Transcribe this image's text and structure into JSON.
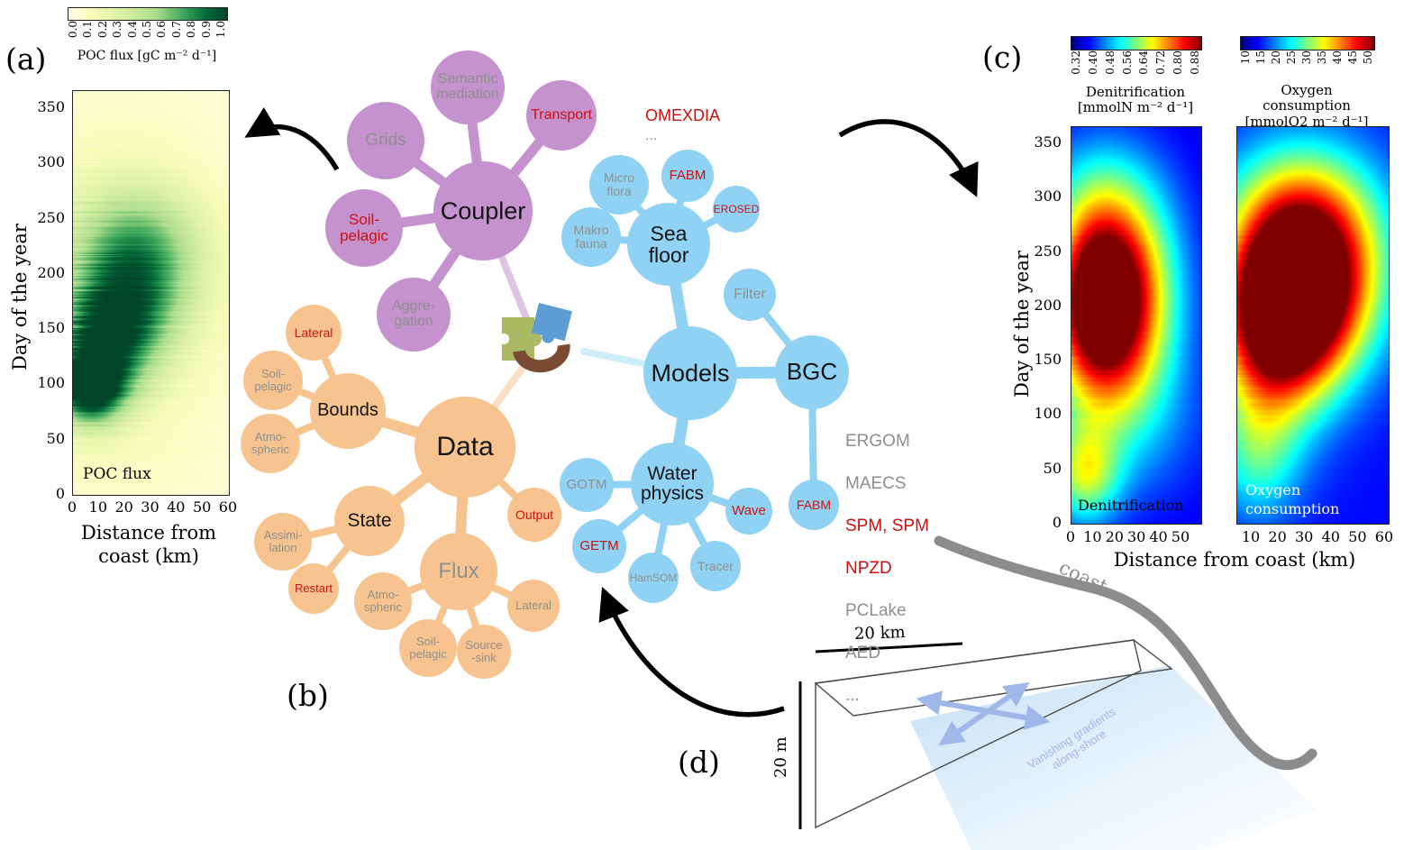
{
  "panels": {
    "a": {
      "label": "(a)",
      "colorbar_label": "POC flux [gC m⁻² d⁻¹]",
      "colorbar_ticks": [
        "0.0",
        "0.1",
        "0.2",
        "0.3",
        "0.4",
        "0.5",
        "0.6",
        "0.7",
        "0.8",
        "0.9",
        "1.0"
      ],
      "ylabel": "Day of the year",
      "y_ticks": [
        "350",
        "300",
        "250",
        "200",
        "150",
        "100",
        "50",
        "0"
      ],
      "x_ticks": [
        "0",
        "10",
        "20",
        "30",
        "40",
        "50",
        "60"
      ],
      "xlabel": "Distance from\ncoast (km)",
      "inner_label": "POC flux"
    },
    "b": {
      "label": "(b)"
    },
    "c": {
      "label": "(c)",
      "ylabel": "Day of the year",
      "y_ticks": [
        "350",
        "300",
        "250",
        "200",
        "150",
        "100",
        "50",
        "0"
      ],
      "xlabel": "Distance from coast (km)",
      "left": {
        "colorbar_label": "Denitrification\n[mmolN m⁻² d⁻¹]",
        "colorbar_ticks": [
          "0.32",
          "0.40",
          "0.48",
          "0.56",
          "0.64",
          "0.72",
          "0.80",
          "0.88"
        ],
        "x_ticks": [
          "0",
          "10",
          "20",
          "30",
          "40",
          "50"
        ],
        "inner_label": "Denitrification"
      },
      "right": {
        "colorbar_label": "Oxygen\nconsumption\n[mmolO2 m⁻² d⁻¹]",
        "colorbar_ticks": [
          "10",
          "15",
          "20",
          "25",
          "30",
          "35",
          "40",
          "45",
          "50"
        ],
        "x_ticks": [
          "10",
          "20",
          "30",
          "40",
          "50",
          "60"
        ],
        "inner_label": "Oxygen\nconsumption"
      }
    },
    "d": {
      "label": "(d)",
      "coast_label": "coast",
      "scale_horizontal": "20 km",
      "scale_vertical": "20 m",
      "gradient_note": "Vanishing gradients\nalong-shore"
    }
  },
  "mindmap": {
    "coupler": {
      "hub": "Coupler",
      "semantic_mediation": "Semantic\nmediation",
      "grids": "Grids",
      "transport": "Transport",
      "soil_pelagic": "Soil-\npelagic",
      "aggregation": "Aggre-\ngation"
    },
    "data": {
      "hub": "Data",
      "bounds": "Bounds",
      "bounds_lateral": "Lateral",
      "bounds_soil_pelagic": "Soil-\npelagic",
      "bounds_atmospheric": "Atmo-\nspheric",
      "state": "State",
      "state_assimilation": "Assimi-\nlation",
      "state_restart": "Restart",
      "flux": "Flux",
      "output": "Output",
      "flux_atmospheric": "Atmo-\nspheric",
      "flux_soil_pelagic": "Soil-\npelagic",
      "flux_source_sink": "Source\n-sink",
      "flux_lateral": "Lateral"
    },
    "models": {
      "hub": "Models",
      "sea_floor": "Sea\nfloor",
      "micro_flora": "Micro\nflora",
      "fabm_seafloor": "FABM",
      "erosed": "EROSED",
      "makro_fauna": "Makro\nfauna",
      "omexdia": "OMEXDIA",
      "omexdia_more": "...",
      "filter": "Filter",
      "bgc": "BGC",
      "bgc_list": [
        "ERGOM",
        "MAECS",
        "SPM, SPM",
        "NPZD",
        "PCLake",
        "AED",
        "..."
      ],
      "fabm_bgc": "FABM",
      "water_physics": "Water\nphysics",
      "gotm": "GOTM",
      "getm": "GETM",
      "hamsom": "HamSOM",
      "tracer": "Tracer",
      "wave": "Wave"
    }
  },
  "colors": {
    "cluster_purple": "#c591ce",
    "cluster_orange": "#f7c48f",
    "cluster_blue": "#90d2f3",
    "text_gray": "#8f8f8f",
    "text_red": "#cc1010",
    "puzzle_green": "#a9ba62",
    "puzzle_blue": "#5e9cd6",
    "puzzle_brown": "#7b4a32",
    "coast_gray": "#8c8c8c",
    "sea_blue": "#8fc3ee",
    "note_blue": "#a0b7e9"
  },
  "chart_data": [
    {
      "id": "poc_flux",
      "type": "heatmap",
      "panel": "a",
      "title": "POC flux",
      "xlabel": "Distance from coast (km)",
      "ylabel": "Day of the year",
      "x_range": [
        0,
        60
      ],
      "y_range": [
        0,
        365
      ],
      "value_range": [
        0.0,
        1.0
      ],
      "units": "gC m⁻² d⁻¹",
      "colormap": "ylgn",
      "description": "Particulate organic carbon flux: highest (0.6-1.0) within 0-30 km of the coast between days ~80-250, peaking near days 90-160 close to shore; near zero offshore and in winter.",
      "field": {
        "base": 0.05,
        "streaks": 0.3,
        "blobs": [
          {
            "x": 6,
            "d": 95,
            "sx": 9,
            "sy": 22,
            "a": 0.85
          },
          {
            "x": 10,
            "d": 130,
            "sx": 12,
            "sy": 35,
            "a": 0.5
          },
          {
            "x": 18,
            "d": 160,
            "sx": 14,
            "sy": 40,
            "a": 0.45
          },
          {
            "x": 28,
            "d": 205,
            "sx": 16,
            "sy": 45,
            "a": 0.38
          },
          {
            "x": 20,
            "d": 235,
            "sx": 20,
            "sy": 38,
            "a": 0.22
          },
          {
            "x": 15,
            "d": 165,
            "sx": 30,
            "sy": 110,
            "a": 0.15
          }
        ]
      }
    },
    {
      "id": "denitrification",
      "type": "heatmap",
      "panel": "c",
      "title": "Denitrification",
      "xlabel": "Distance from coast (km)",
      "ylabel": "Day of the year",
      "x_range": [
        0,
        59
      ],
      "y_range": [
        0,
        365
      ],
      "value_range": [
        0.32,
        0.88
      ],
      "units": "mmolN m⁻² d⁻¹",
      "colormap": "jet",
      "description": "Highest (red, ~0.8-0.9) around days 180-260 within ~0-35 km of the coast; moderate band near days 20-70 close to shore; low (blue) offshore and in winter.",
      "field": {
        "base": 0.1,
        "streaks": 0.05,
        "blobs": [
          {
            "x": 10,
            "d": 212,
            "sx": 14,
            "sy": 52,
            "a": 0.8
          },
          {
            "x": 28,
            "d": 218,
            "sx": 16,
            "sy": 55,
            "a": 0.5
          },
          {
            "x": 16,
            "d": 150,
            "sx": 18,
            "sy": 50,
            "a": 0.3
          },
          {
            "x": 6,
            "d": 45,
            "sx": 11,
            "sy": 32,
            "a": 0.4
          },
          {
            "x": 24,
            "d": 95,
            "sx": 25,
            "sy": 55,
            "a": 0.18
          },
          {
            "x": 14,
            "d": 300,
            "sx": 20,
            "sy": 45,
            "a": 0.25
          }
        ]
      }
    },
    {
      "id": "oxygen_consumption",
      "type": "heatmap",
      "panel": "c",
      "title": "Oxygen consumption",
      "xlabel": "Distance from coast (km)",
      "ylabel": "Day of the year",
      "x_range": [
        0,
        62
      ],
      "y_range": [
        0,
        365
      ],
      "value_range": [
        10,
        50
      ],
      "units": "mmolO2 m⁻² d⁻¹",
      "colormap": "jet",
      "description": "Maximum (red, ~45-50) around days 170-250 at 10-40 km from the coast; broad warm region days 100-300; low (blue) in winter and far offshore.",
      "field": {
        "base": 0.13,
        "streaks": 0.05,
        "blobs": [
          {
            "x": 22,
            "d": 200,
            "sx": 18,
            "sy": 55,
            "a": 0.85
          },
          {
            "x": 36,
            "d": 230,
            "sx": 20,
            "sy": 60,
            "a": 0.45
          },
          {
            "x": 12,
            "d": 165,
            "sx": 16,
            "sy": 70,
            "a": 0.4
          },
          {
            "x": 25,
            "d": 285,
            "sx": 22,
            "sy": 50,
            "a": 0.38
          },
          {
            "x": 8,
            "d": 60,
            "sx": 12,
            "sy": 40,
            "a": 0.22
          }
        ]
      }
    }
  ],
  "colormaps": {
    "ylgn": [
      [
        0,
        "#ffffe5"
      ],
      [
        0.15,
        "#f7fcb9"
      ],
      [
        0.35,
        "#d9f0a3"
      ],
      [
        0.55,
        "#addd8e"
      ],
      [
        0.72,
        "#41ab5d"
      ],
      [
        0.88,
        "#006837"
      ],
      [
        1,
        "#004529"
      ]
    ],
    "jet": [
      [
        0,
        "#000083"
      ],
      [
        0.125,
        "#0000ff"
      ],
      [
        0.375,
        "#00ffff"
      ],
      [
        0.625,
        "#ffff00"
      ],
      [
        0.875,
        "#ff0000"
      ],
      [
        1,
        "#800000"
      ]
    ]
  }
}
